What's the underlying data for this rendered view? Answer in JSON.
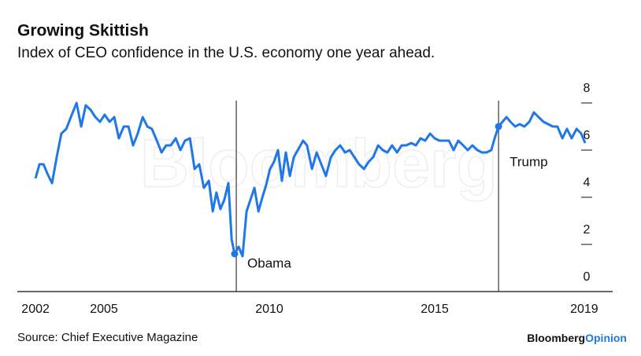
{
  "chart_data": {
    "type": "line",
    "title": "Growing Skittish",
    "subtitle": "Index of CEO confidence in the U.S. economy one year ahead.",
    "source": "Source: Chief Executive Magazine",
    "logo": [
      "Bloomberg",
      "Opinion"
    ],
    "watermark": "Bloomberg",
    "xlim": [
      2002.38,
      2020.38
    ],
    "xticks": [
      {
        "value": 2002.93,
        "label": "2002"
      },
      2005,
      2010,
      2015,
      {
        "value": 2019.52,
        "label": "2019"
      }
    ],
    "ylim": [
      0,
      8.8
    ],
    "yticks": [
      0,
      2,
      4,
      6,
      8
    ],
    "annotations": [
      {
        "text": "Obama",
        "x": 2009.0
      },
      {
        "text": "Trump",
        "x": 2016.93
      }
    ],
    "series": [
      {
        "name": "CEO confidence",
        "color": "#1f78e6",
        "x": [
          2002.93,
          2003.05,
          2003.17,
          2003.29,
          2003.43,
          2003.57,
          2003.71,
          2003.86,
          2004.0,
          2004.17,
          2004.31,
          2004.45,
          2004.6,
          2004.74,
          2004.88,
          2005.02,
          2005.17,
          2005.31,
          2005.45,
          2005.6,
          2005.74,
          2005.88,
          2006.02,
          2006.17,
          2006.31,
          2006.45,
          2006.6,
          2006.74,
          2006.88,
          2007.02,
          2007.17,
          2007.31,
          2007.45,
          2007.6,
          2007.74,
          2007.88,
          2008.02,
          2008.17,
          2008.29,
          2008.4,
          2008.52,
          2008.64,
          2008.76,
          2008.86,
          2008.95,
          2009.07,
          2009.19,
          2009.31,
          2009.43,
          2009.55,
          2009.67,
          2009.79,
          2009.9,
          2010.02,
          2010.14,
          2010.26,
          2010.38,
          2010.5,
          2010.62,
          2010.74,
          2010.86,
          2011.02,
          2011.14,
          2011.29,
          2011.43,
          2011.57,
          2011.71,
          2011.86,
          2012.0,
          2012.14,
          2012.29,
          2012.43,
          2012.57,
          2012.71,
          2012.86,
          2013.0,
          2013.14,
          2013.29,
          2013.43,
          2013.57,
          2013.71,
          2013.86,
          2014.0,
          2014.14,
          2014.29,
          2014.43,
          2014.57,
          2014.71,
          2014.86,
          2015.0,
          2015.14,
          2015.29,
          2015.43,
          2015.57,
          2015.71,
          2015.86,
          2016.0,
          2016.14,
          2016.29,
          2016.43,
          2016.57,
          2016.71,
          2016.81,
          2016.93,
          2017.05,
          2017.17,
          2017.29,
          2017.43,
          2017.57,
          2017.71,
          2017.86,
          2018.0,
          2018.14,
          2018.29,
          2018.43,
          2018.57,
          2018.71,
          2018.86,
          2019.0,
          2019.14,
          2019.29,
          2019.43,
          2019.55
        ],
        "values": [
          4.8,
          5.4,
          5.4,
          5.0,
          4.6,
          5.7,
          6.7,
          6.9,
          7.4,
          8.0,
          7.0,
          7.9,
          7.7,
          7.4,
          7.2,
          7.5,
          7.2,
          7.4,
          6.5,
          7.0,
          7.0,
          6.2,
          6.7,
          7.4,
          7.0,
          6.9,
          6.4,
          5.9,
          6.2,
          6.2,
          6.5,
          6.0,
          6.4,
          6.5,
          5.2,
          5.4,
          4.4,
          4.7,
          3.4,
          4.2,
          3.5,
          3.9,
          4.6,
          2.2,
          1.6,
          1.9,
          1.5,
          3.4,
          3.9,
          4.4,
          3.4,
          4.0,
          4.5,
          5.2,
          5.5,
          6.0,
          4.7,
          5.9,
          4.9,
          5.7,
          6.0,
          6.4,
          6.2,
          5.2,
          5.9,
          5.4,
          4.9,
          5.7,
          6.0,
          6.2,
          5.9,
          6.0,
          5.7,
          5.4,
          5.2,
          5.5,
          5.7,
          6.2,
          6.0,
          5.9,
          6.2,
          5.9,
          6.2,
          6.2,
          6.3,
          6.2,
          6.5,
          6.4,
          6.7,
          6.5,
          6.4,
          6.4,
          6.4,
          6.0,
          6.4,
          6.2,
          6.0,
          6.2,
          6.0,
          5.9,
          5.9,
          6.0,
          6.5,
          7.0,
          7.2,
          7.4,
          7.2,
          7.0,
          7.1,
          7.0,
          7.2,
          7.6,
          7.4,
          7.2,
          7.1,
          7.0,
          7.0,
          6.5,
          6.9,
          6.5,
          6.9,
          6.7,
          6.3
        ]
      }
    ]
  }
}
